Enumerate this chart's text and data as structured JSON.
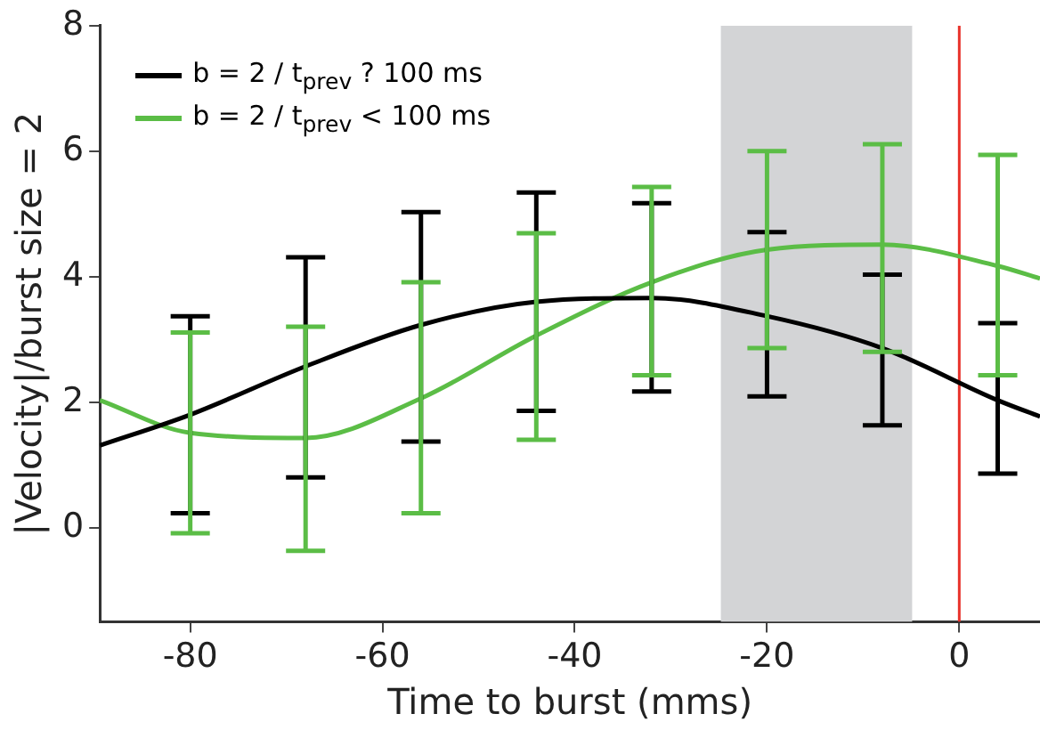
{
  "chart_data": {
    "type": "line",
    "xlabel": "Time to burst (mms)",
    "ylabel": "|Velocity|/burst size = 2",
    "x": [
      -89.4,
      -80,
      -68,
      -56,
      -44,
      -32,
      -20,
      -8,
      4,
      8.4
    ],
    "series": [
      {
        "name": "b = 2 / t$_{prev}$ ? 100 ms",
        "color": "#000000",
        "values": [
          1.31,
          1.8,
          2.57,
          3.23,
          3.6,
          3.66,
          3.37,
          2.86,
          2.03,
          1.77
        ],
        "errors": [
          null,
          [
            0.23,
            3.37
          ],
          [
            0.8,
            4.31
          ],
          [
            1.37,
            5.03
          ],
          [
            1.86,
            5.34
          ],
          [
            2.17,
            5.17
          ],
          [
            2.09,
            4.71
          ],
          [
            1.63,
            4.03
          ],
          [
            0.86,
            3.26
          ],
          null
        ]
      },
      {
        "name": "b = 2 / t$_{prev}$ < 100 ms",
        "color": "#5bbd46",
        "values": [
          2.03,
          1.51,
          1.43,
          2.06,
          3.06,
          3.91,
          4.43,
          4.51,
          4.17,
          3.97
        ],
        "errors": [
          null,
          [
            -0.09,
            3.11
          ],
          [
            -0.37,
            3.2
          ],
          [
            0.23,
            3.91
          ],
          [
            1.4,
            4.69
          ],
          [
            2.43,
            5.43
          ],
          [
            2.86,
            6.0
          ],
          [
            2.8,
            6.11
          ],
          [
            2.43,
            5.94
          ],
          null
        ]
      }
    ],
    "xlim": [
      -89.4,
      8.4
    ],
    "xticks": [
      -80,
      -60,
      -40,
      -20,
      0
    ],
    "ylim": [
      -1.5,
      8
    ],
    "yticks": [
      0,
      2,
      4,
      6,
      8
    ],
    "ref_lines": [
      {
        "axis": "x",
        "value": 0,
        "color": "#e8312a"
      }
    ],
    "bands": [
      {
        "axis": "x",
        "from": -24.8,
        "to": -4.9,
        "color": "#d3d4d6"
      }
    ],
    "grid": false,
    "legend": "top left",
    "marker": "none",
    "line_style": "solid"
  }
}
